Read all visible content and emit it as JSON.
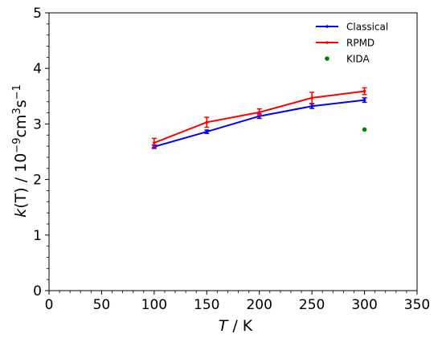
{
  "chart_data": {
    "type": "line",
    "xlabel_var": "T",
    "xlabel_unit": " / K",
    "ylabel_var": "k",
    "ylabel_paren": "(T)",
    "ylabel_mid": " / 10",
    "ylabel_exp1": "−9",
    "ylabel_cm": "cm",
    "ylabel_exp2": "3",
    "ylabel_s": "s",
    "ylabel_exp3": "−1",
    "xlim": [
      0,
      350
    ],
    "ylim": [
      0,
      5
    ],
    "xticks": [
      0,
      50,
      100,
      150,
      200,
      250,
      300,
      350
    ],
    "yticks": [
      0,
      1,
      2,
      3,
      4,
      5
    ],
    "legend_position": "top-right",
    "grid": false,
    "series": [
      {
        "name": "Classical",
        "kind": "line",
        "color": "#0000ff",
        "x": [
          100,
          150,
          200,
          250,
          300
        ],
        "y": [
          2.59,
          2.86,
          3.14,
          3.32,
          3.43
        ],
        "err": [
          0.03,
          0.03,
          0.04,
          0.04,
          0.04
        ]
      },
      {
        "name": "RPMD",
        "kind": "line",
        "color": "#ff0000",
        "x": [
          100,
          150,
          200,
          250,
          300
        ],
        "y": [
          2.66,
          3.03,
          3.21,
          3.47,
          3.59
        ],
        "err": [
          0.08,
          0.09,
          0.06,
          0.1,
          0.06
        ]
      },
      {
        "name": "KIDA",
        "kind": "scatter",
        "color": "#008000",
        "x": [
          300
        ],
        "y": [
          2.9
        ],
        "err": [
          0
        ]
      }
    ]
  }
}
